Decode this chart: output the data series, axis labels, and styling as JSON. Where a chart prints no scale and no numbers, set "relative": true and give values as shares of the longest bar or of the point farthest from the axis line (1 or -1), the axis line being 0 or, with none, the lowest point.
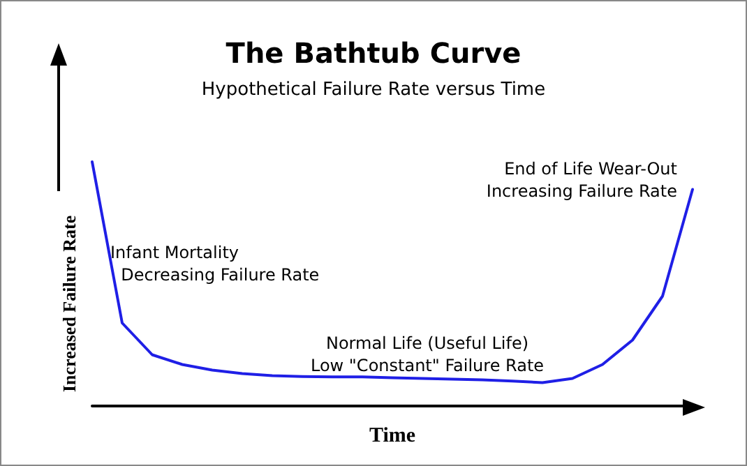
{
  "chart_data": {
    "type": "line",
    "title": "The Bathtub Curve",
    "subtitle": "Hypothetical Failure Rate versus Time",
    "xlabel": "Time",
    "ylabel": "Increased Failure Rate",
    "relative": true,
    "categories": [
      null,
      null,
      null,
      null,
      null,
      null,
      null,
      null,
      null,
      null,
      null,
      null,
      null,
      null,
      null,
      null,
      null,
      null,
      null,
      null,
      null
    ],
    "series": [
      {
        "color": "#1f1fe6",
        "values": [
          1.0,
          0.34,
          0.21,
          0.17,
          0.147,
          0.133,
          0.124,
          0.121,
          0.119,
          0.119,
          0.116,
          0.113,
          0.11,
          0.107,
          0.102,
          0.096,
          0.113,
          0.17,
          0.27,
          0.45,
          0.887
        ]
      }
    ],
    "annotations": [
      "Infant Mortality\n  Decreasing Failure Rate",
      "Normal Life (Useful Life)\nLow \"Constant\" Failure Rate",
      "End of Life Wear-Out\nIncreasing Failure Rate"
    ],
    "grid": false,
    "marker": "none",
    "line_style": "solid"
  }
}
